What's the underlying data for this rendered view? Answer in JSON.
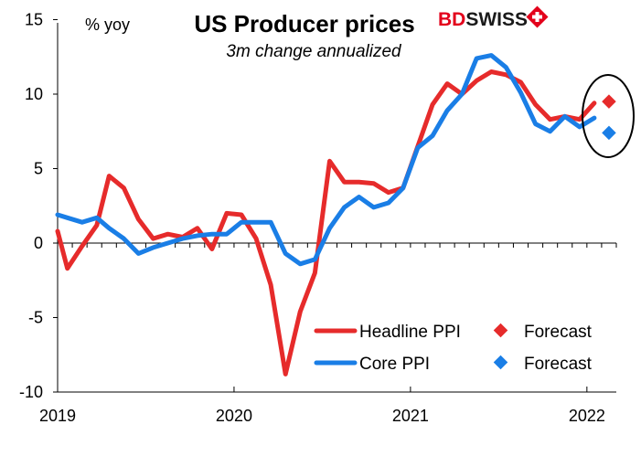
{
  "chart_data": {
    "type": "line",
    "title": "US Producer prices",
    "subtitle": "3m change annualized",
    "unit_label": "% yoy",
    "ylim": [
      -10,
      15
    ],
    "yticks": [
      -10,
      -5,
      0,
      5,
      10,
      15
    ],
    "xlim": [
      2019,
      2022.1667
    ],
    "xticks": [
      {
        "value": 2019,
        "label": "2019"
      },
      {
        "value": 2020,
        "label": "2020"
      },
      {
        "value": 2021,
        "label": "2021"
      },
      {
        "value": 2022,
        "label": "2022"
      }
    ],
    "grid": false,
    "legend_position": "bottom-right",
    "series": [
      {
        "name": "Headline PPI",
        "color": "#e62b2b",
        "points": [
          [
            2019.0,
            0.8
          ],
          [
            2019.0556,
            -1.7
          ],
          [
            2019.1389,
            -0.2
          ],
          [
            2019.2222,
            1.2
          ],
          [
            2019.2917,
            4.5
          ],
          [
            2019.375,
            3.7
          ],
          [
            2019.4583,
            1.6
          ],
          [
            2019.5417,
            0.3
          ],
          [
            2019.625,
            0.6
          ],
          [
            2019.7083,
            0.4
          ],
          [
            2019.7917,
            1.0
          ],
          [
            2019.875,
            -0.4
          ],
          [
            2019.9583,
            2.0
          ],
          [
            2020.0417,
            1.9
          ],
          [
            2020.125,
            0.3
          ],
          [
            2020.2083,
            -2.8
          ],
          [
            2020.2917,
            -8.8
          ],
          [
            2020.375,
            -4.6
          ],
          [
            2020.4583,
            -2.0
          ],
          [
            2020.5417,
            5.5
          ],
          [
            2020.625,
            4.1
          ],
          [
            2020.7083,
            4.1
          ],
          [
            2020.7917,
            4.0
          ],
          [
            2020.875,
            3.4
          ],
          [
            2020.9583,
            3.7
          ],
          [
            2021.0417,
            6.5
          ],
          [
            2021.125,
            9.3
          ],
          [
            2021.2083,
            10.7
          ],
          [
            2021.2917,
            10.0
          ],
          [
            2021.375,
            10.9
          ],
          [
            2021.4583,
            11.5
          ],
          [
            2021.5417,
            11.3
          ],
          [
            2021.625,
            10.8
          ],
          [
            2021.7083,
            9.3
          ],
          [
            2021.7917,
            8.3
          ],
          [
            2021.875,
            8.5
          ],
          [
            2021.9583,
            8.3
          ],
          [
            2022.0417,
            9.4
          ]
        ]
      },
      {
        "name": "Core PPI",
        "color": "#1a7ee6",
        "points": [
          [
            2019.0,
            1.9
          ],
          [
            2019.0556,
            1.7
          ],
          [
            2019.1389,
            1.4
          ],
          [
            2019.2222,
            1.7
          ],
          [
            2019.2917,
            1.0
          ],
          [
            2019.375,
            0.3
          ],
          [
            2019.4583,
            -0.7
          ],
          [
            2019.5417,
            -0.3
          ],
          [
            2019.625,
            0.0
          ],
          [
            2019.7083,
            0.3
          ],
          [
            2019.7917,
            0.5
          ],
          [
            2019.875,
            0.6
          ],
          [
            2019.9583,
            0.6
          ],
          [
            2020.0417,
            1.4
          ],
          [
            2020.125,
            1.4
          ],
          [
            2020.2083,
            1.4
          ],
          [
            2020.2917,
            -0.7
          ],
          [
            2020.375,
            -1.4
          ],
          [
            2020.4583,
            -1.1
          ],
          [
            2020.5417,
            1.0
          ],
          [
            2020.625,
            2.4
          ],
          [
            2020.7083,
            3.1
          ],
          [
            2020.7917,
            2.4
          ],
          [
            2020.875,
            2.7
          ],
          [
            2020.9583,
            3.7
          ],
          [
            2021.0417,
            6.4
          ],
          [
            2021.125,
            7.2
          ],
          [
            2021.2083,
            8.9
          ],
          [
            2021.2917,
            10.0
          ],
          [
            2021.375,
            12.4
          ],
          [
            2021.4583,
            12.6
          ],
          [
            2021.5417,
            11.8
          ],
          [
            2021.625,
            10.1
          ],
          [
            2021.7083,
            8.0
          ],
          [
            2021.7917,
            7.5
          ],
          [
            2021.875,
            8.5
          ],
          [
            2021.9583,
            7.8
          ],
          [
            2022.0417,
            8.4
          ]
        ]
      }
    ],
    "forecasts": [
      {
        "name": "Forecast",
        "series": "Headline PPI",
        "color": "#e62b2b",
        "x": 2022.125,
        "y": 9.5
      },
      {
        "name": "Forecast",
        "series": "Core PPI",
        "color": "#1a7ee6",
        "x": 2022.125,
        "y": 7.4
      }
    ],
    "annotation": "ellipse around forecasts"
  },
  "logo": {
    "part1": "BD",
    "part2": "SWISS"
  }
}
